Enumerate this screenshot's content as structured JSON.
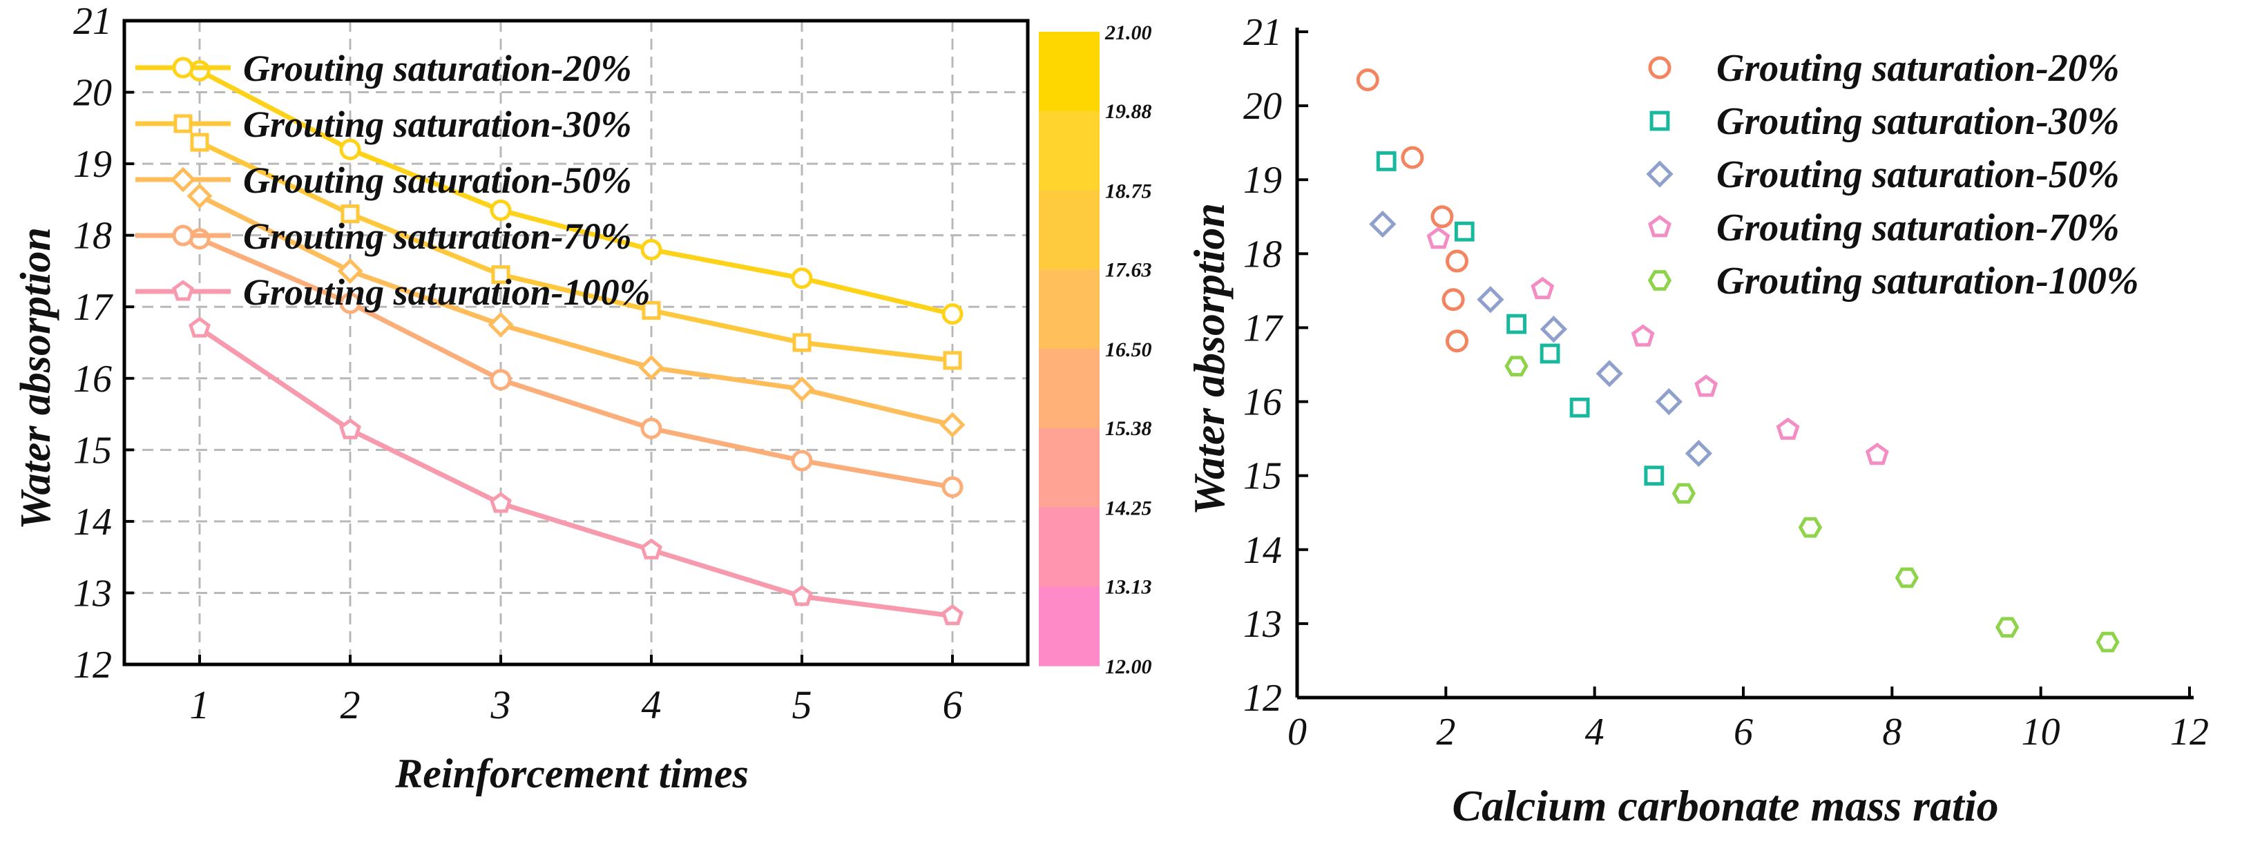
{
  "chart_data": [
    {
      "type": "line",
      "title": "",
      "xlabel": "Reinforcement times",
      "ylabel": "Water absorption",
      "x": [
        1,
        2,
        3,
        4,
        5,
        6
      ],
      "xticks": [
        "1",
        "2",
        "3",
        "4",
        "5",
        "6"
      ],
      "yticks": [
        "12",
        "13",
        "14",
        "15",
        "16",
        "17",
        "18",
        "19",
        "20",
        "21"
      ],
      "xlim": [
        0.5,
        6.5
      ],
      "ylim": [
        12,
        21
      ],
      "grid": true,
      "legend_position": "top-left",
      "series": [
        {
          "name": "Grouting saturation-20%",
          "marker": "circle",
          "color": "#FFD21A",
          "values": [
            20.3,
            19.2,
            18.35,
            17.8,
            17.4,
            16.9
          ]
        },
        {
          "name": "Grouting saturation-30%",
          "marker": "square",
          "color": "#FFC83C",
          "values": [
            19.3,
            18.3,
            17.45,
            16.95,
            16.5,
            16.25
          ]
        },
        {
          "name": "Grouting saturation-50%",
          "marker": "diamond",
          "color": "#FFBC5A",
          "values": [
            18.55,
            17.5,
            16.75,
            16.15,
            15.85,
            15.35
          ]
        },
        {
          "name": "Grouting saturation-70%",
          "marker": "circle",
          "color": "#FCAE7A",
          "values": [
            17.95,
            17.05,
            15.98,
            15.3,
            14.85,
            14.48
          ]
        },
        {
          "name": "Grouting saturation-100%",
          "marker": "pentagon",
          "color": "#F89AAE",
          "values": [
            16.7,
            15.28,
            14.25,
            13.6,
            12.95,
            12.68
          ]
        }
      ],
      "colorbar": {
        "min": 12.0,
        "max": 21.0,
        "labels": [
          "21.00",
          "19.88",
          "18.75",
          "17.63",
          "16.50",
          "15.38",
          "14.25",
          "13.13",
          "12.00"
        ],
        "colors": [
          "#FFD700",
          "#FFD42C",
          "#FFCB3E",
          "#FFBF5A",
          "#FFB178",
          "#FFA394",
          "#FF95AE",
          "#FF8AC8"
        ]
      }
    },
    {
      "type": "scatter",
      "title": "",
      "xlabel": "Calcium carbonate mass ratio",
      "ylabel": "Water absorption",
      "xticks": [
        "0",
        "2",
        "4",
        "6",
        "8",
        "10",
        "12"
      ],
      "yticks": [
        "12",
        "13",
        "14",
        "15",
        "16",
        "17",
        "18",
        "19",
        "20",
        "21"
      ],
      "xlim": [
        0,
        12
      ],
      "ylim": [
        12,
        21
      ],
      "grid": false,
      "legend_position": "top-right",
      "series": [
        {
          "name": "Grouting saturation-20%",
          "marker": "circle",
          "color": "#F28560",
          "points": [
            [
              0.95,
              20.35
            ],
            [
              1.55,
              19.3
            ],
            [
              1.95,
              18.5
            ],
            [
              2.15,
              17.9
            ],
            [
              2.1,
              17.38
            ],
            [
              2.15,
              16.82
            ]
          ]
        },
        {
          "name": "Grouting saturation-30%",
          "marker": "square",
          "color": "#17B89E",
          "points": [
            [
              1.2,
              19.25
            ],
            [
              2.25,
              18.3
            ],
            [
              2.95,
              17.05
            ],
            [
              3.4,
              16.65
            ],
            [
              3.8,
              15.92
            ],
            [
              4.8,
              15.0
            ]
          ]
        },
        {
          "name": "Grouting saturation-50%",
          "marker": "diamond",
          "color": "#8EA0CB",
          "points": [
            [
              1.15,
              18.4
            ],
            [
              2.6,
              17.38
            ],
            [
              3.45,
              16.98
            ],
            [
              4.2,
              16.38
            ],
            [
              5.0,
              16.0
            ],
            [
              5.4,
              15.3
            ]
          ]
        },
        {
          "name": "Grouting saturation-70%",
          "marker": "pentagon",
          "color": "#F38DC4",
          "points": [
            [
              1.9,
              18.2
            ],
            [
              3.3,
              17.52
            ],
            [
              4.65,
              16.88
            ],
            [
              5.5,
              16.2
            ],
            [
              6.6,
              15.62
            ],
            [
              7.8,
              15.28
            ]
          ]
        },
        {
          "name": "Grouting saturation-100%",
          "marker": "hexagon",
          "color": "#8ED34A",
          "points": [
            [
              2.95,
              16.48
            ],
            [
              5.2,
              14.76
            ],
            [
              6.9,
              14.3
            ],
            [
              8.2,
              13.62
            ],
            [
              9.55,
              12.95
            ],
            [
              10.9,
              12.75
            ]
          ]
        }
      ]
    }
  ]
}
